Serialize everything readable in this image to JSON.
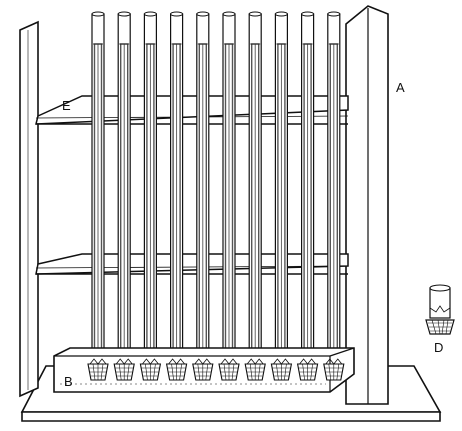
{
  "labels": {
    "frame": "A",
    "trough": "B",
    "detail": "D",
    "shelf": "E"
  },
  "apparatus": {
    "tube_count": 10
  },
  "colors": {
    "ink": "#111111",
    "paper": "#ffffff",
    "glass_shade": "#555555"
  }
}
